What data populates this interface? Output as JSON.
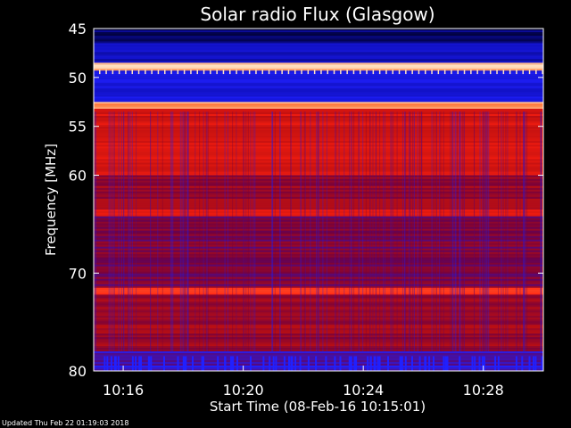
{
  "chart_data": {
    "type": "heatmap",
    "title": "Solar radio Flux (Glasgow)",
    "xlabel": "Start Time (08-Feb-16 10:15:01)",
    "ylabel": "Frequency [MHz]",
    "x_range": [
      "10:15:01",
      "10:30:00"
    ],
    "y_range_mhz": [
      45,
      80
    ],
    "y_ticks": [
      45,
      50,
      55,
      60,
      70,
      80
    ],
    "x_ticks": [
      "10:16",
      "10:20",
      "10:24",
      "10:28"
    ],
    "colormap": [
      "#000033",
      "#1010c0",
      "#2020ff",
      "#700040",
      "#c01010",
      "#ff2010",
      "#ff8040",
      "#ffe0c0"
    ],
    "bands": [
      {
        "from_mhz": 45,
        "to_mhz": 46.5,
        "intensity": 0.05
      },
      {
        "from_mhz": 46.5,
        "to_mhz": 48.5,
        "intensity": 0.15
      },
      {
        "from_mhz": 48.5,
        "to_mhz": 49.3,
        "intensity": 0.95
      },
      {
        "from_mhz": 49.3,
        "to_mhz": 52.5,
        "intensity": 0.2
      },
      {
        "from_mhz": 52.5,
        "to_mhz": 53.2,
        "intensity": 0.9
      },
      {
        "from_mhz": 53.2,
        "to_mhz": 60,
        "intensity": 0.62
      },
      {
        "from_mhz": 60,
        "to_mhz": 63.5,
        "intensity": 0.5
      },
      {
        "from_mhz": 63.5,
        "to_mhz": 64.2,
        "intensity": 0.7
      },
      {
        "from_mhz": 64.2,
        "to_mhz": 71.5,
        "intensity": 0.45
      },
      {
        "from_mhz": 71.5,
        "to_mhz": 72.2,
        "intensity": 0.7
      },
      {
        "from_mhz": 72.2,
        "to_mhz": 78,
        "intensity": 0.5
      },
      {
        "from_mhz": 78,
        "to_mhz": 80,
        "intensity": 0.35
      }
    ]
  },
  "footer": "Updated Thu Feb 22 01:19:03 2018"
}
